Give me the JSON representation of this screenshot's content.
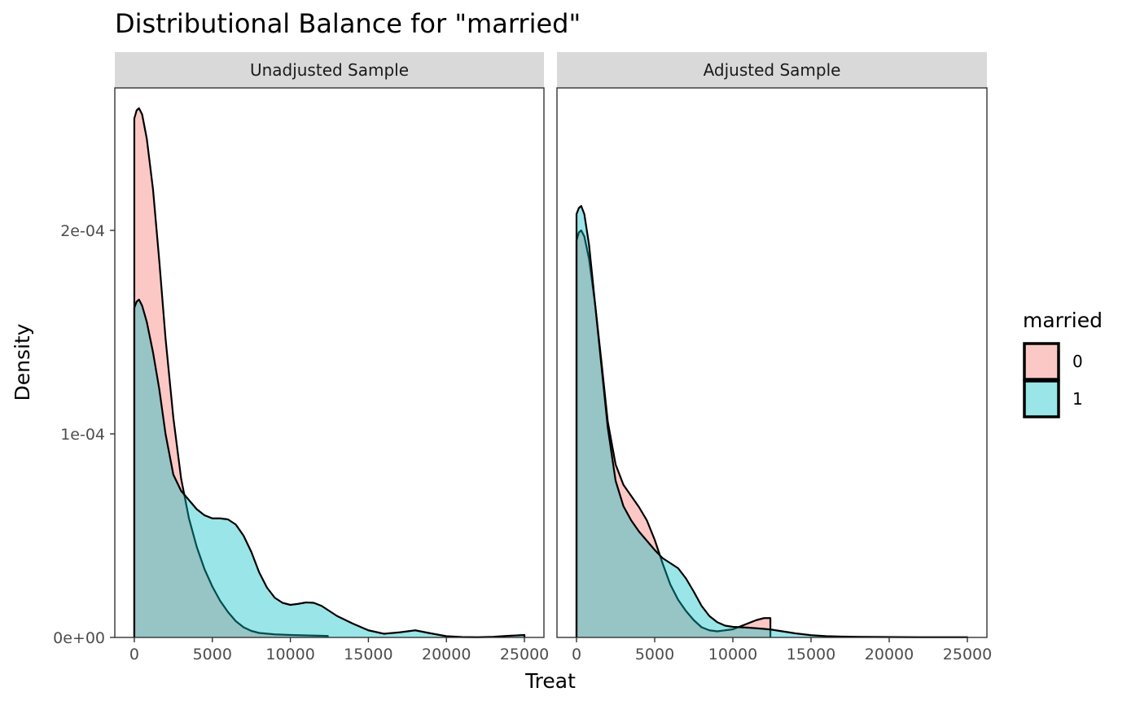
{
  "chart_data": {
    "type": "area",
    "title": "Distributional Balance for \"married\"",
    "xlabel": "Treat",
    "ylabel": "Density",
    "xlim": [
      -1250,
      26250
    ],
    "ylim": [
      0,
      0.00027
    ],
    "x_ticks": [
      0,
      5000,
      10000,
      15000,
      20000,
      25000
    ],
    "x_tick_labels": [
      "0",
      "5000",
      "10000",
      "15000",
      "20000",
      "25000"
    ],
    "y_ticks": [
      0,
      0.0001,
      0.0002
    ],
    "y_tick_labels": [
      "0e+00",
      "1e-04",
      "2e-04"
    ],
    "grid": false,
    "legend": {
      "title": "married",
      "position": "right",
      "entries": [
        {
          "label": "0",
          "color": "#F8766D"
        },
        {
          "label": "1",
          "color": "#00BFC4"
        }
      ]
    },
    "fill_opacity": 0.4,
    "panels": [
      {
        "label": "Unadjusted Sample",
        "series": [
          {
            "name": "0",
            "color": "#F8766D",
            "x": [
              0,
              150,
              300,
              500,
              800,
              1200,
              1600,
              2000,
              2500,
              3000,
              3500,
              4000,
              4500,
              5000,
              5500,
              6000,
              6500,
              7000,
              7500,
              8000,
              9000,
              10000,
              11000,
              12000,
              12400
            ],
            "y": [
              0.000255,
              0.000259,
              0.00026,
              0.000257,
              0.000245,
              0.00022,
              0.000185,
              0.000147,
              0.000108,
              7.8e-05,
              5.85e-05,
              4.45e-05,
              3.35e-05,
              2.5e-05,
              1.8e-05,
              1.25e-05,
              8e-06,
              5e-06,
              3.2e-06,
              2.2e-06,
              1.5e-06,
              1.2e-06,
              1e-06,
              8e-07,
              7e-07
            ]
          },
          {
            "name": "1",
            "color": "#00BFC4",
            "x": [
              0,
              150,
              300,
              500,
              800,
              1200,
              1600,
              2000,
              2500,
              3000,
              3500,
              4000,
              4500,
              5000,
              5500,
              6000,
              6500,
              7000,
              7500,
              8000,
              8500,
              9000,
              9500,
              10000,
              10500,
              11000,
              11500,
              12000,
              12500,
              13000,
              14000,
              15000,
              16000,
              17000,
              18000,
              19000,
              20000,
              21000,
              22000,
              23000,
              24000,
              25000
            ],
            "y": [
              0.000162,
              0.000165,
              0.000166,
              0.000163,
              0.000155,
              0.00014,
              0.000122,
              0.0001,
              8e-05,
              7.2e-05,
              6.75e-05,
              6.3e-05,
              6e-05,
              5.85e-05,
              5.85e-05,
              5.8e-05,
              5.55e-05,
              5e-05,
              4.2e-05,
              3.2e-05,
              2.45e-05,
              1.95e-05,
              1.7e-05,
              1.6e-05,
              1.65e-05,
              1.72e-05,
              1.7e-05,
              1.55e-05,
              1.3e-05,
              1.05e-05,
              6.8e-06,
              3.5e-06,
              1.8e-06,
              2.5e-06,
              3.5e-06,
              2e-06,
              6e-07,
              2e-07,
              1e-07,
              3e-07,
              8e-07,
              1.2e-06
            ]
          }
        ]
      },
      {
        "label": "Adjusted Sample",
        "series": [
          {
            "name": "0",
            "color": "#F8766D",
            "x": [
              0,
              150,
              300,
              500,
              800,
              1200,
              1600,
              2000,
              2500,
              3000,
              3500,
              4000,
              4500,
              5000,
              5500,
              6000,
              6500,
              7000,
              7500,
              8000,
              8500,
              9000,
              9500,
              10000,
              10500,
              11000,
              11500,
              12000,
              12400
            ],
            "y": [
              0.000195,
              0.000199,
              0.0002,
              0.000197,
              0.000186,
              0.000163,
              0.000135,
              0.000106,
              8.5e-05,
              7.5e-05,
              6.95e-05,
              6.4e-05,
              5.75e-05,
              4.8e-05,
              3.65e-05,
              2.6e-05,
              1.85e-05,
              1.3e-05,
              8.5e-06,
              5e-06,
              3.5e-06,
              3e-06,
              3.5e-06,
              4e-06,
              5.5e-06,
              7e-06,
              8.5e-06,
              9.5e-06,
              9.5e-06
            ]
          },
          {
            "name": "1",
            "color": "#00BFC4",
            "x": [
              0,
              150,
              300,
              500,
              800,
              1200,
              1600,
              2000,
              2500,
              3000,
              3500,
              4000,
              4500,
              5000,
              5500,
              6000,
              6500,
              7000,
              7500,
              8000,
              8500,
              9000,
              9500,
              10000,
              10500,
              11000,
              11500,
              12000,
              12500,
              13000,
              14000,
              15000,
              16000,
              17000,
              18000,
              20000,
              22000,
              24000,
              25000
            ],
            "y": [
              0.000208,
              0.000211,
              0.000212,
              0.000208,
              0.000193,
              0.000163,
              0.000133,
              0.000103,
              7.7e-05,
              6.45e-05,
              5.75e-05,
              5.2e-05,
              4.75e-05,
              4.3e-05,
              3.9e-05,
              3.65e-05,
              3.4e-05,
              2.9e-05,
              2.25e-05,
              1.55e-05,
              1.05e-05,
              7.5e-06,
              5.8e-06,
              5.2e-06,
              5e-06,
              4.8e-06,
              4.5e-06,
              4.2e-06,
              3.8e-06,
              3.2e-06,
              2e-06,
              1.1e-06,
              6e-07,
              4e-07,
              3e-07,
              2e-07,
              1e-07,
              1e-07,
              1e-07
            ]
          }
        ]
      }
    ]
  }
}
